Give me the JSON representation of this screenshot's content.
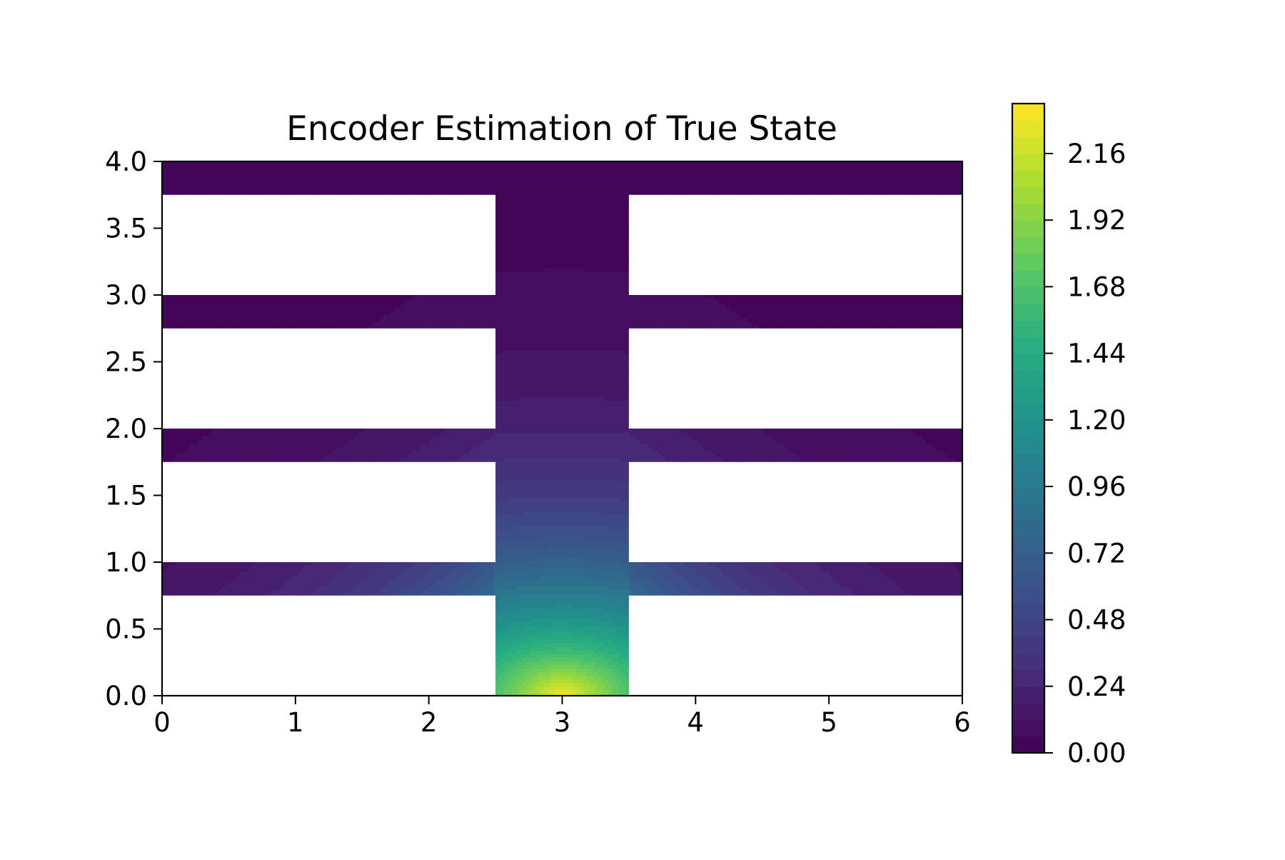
{
  "chart_data": {
    "type": "heatmap",
    "subtype": "filled-contour",
    "title": "Encoder Estimation of True State",
    "xlabel": "",
    "ylabel": "",
    "xlim": [
      0,
      6
    ],
    "ylim": [
      0,
      4
    ],
    "x_ticks": [
      "0",
      "1",
      "2",
      "3",
      "4",
      "5",
      "6"
    ],
    "y_ticks": [
      "0.0",
      "0.5",
      "1.0",
      "1.5",
      "2.0",
      "2.5",
      "3.0",
      "3.5",
      "4.0"
    ],
    "colormap": "viridis",
    "colorbar": {
      "range": [
        0,
        2.34
      ],
      "levels": 39,
      "ticks": [
        "0.00",
        "0.24",
        "0.48",
        "0.72",
        "0.96",
        "1.20",
        "1.44",
        "1.68",
        "1.92",
        "2.16"
      ]
    },
    "domain": {
      "vertical_channel": {
        "x": [
          2.5,
          3.5
        ],
        "y": [
          0,
          4
        ]
      },
      "horizontal_channels": [
        {
          "x": [
            0,
            6
          ],
          "y": [
            0.75,
            1.0
          ]
        },
        {
          "x": [
            0,
            6
          ],
          "y": [
            1.75,
            2.0
          ]
        },
        {
          "x": [
            0,
            6
          ],
          "y": [
            2.75,
            3.0
          ]
        },
        {
          "x": [
            0,
            6
          ],
          "y": [
            3.75,
            4.0
          ]
        }
      ]
    },
    "source": {
      "x": 3.0,
      "y": 0.0,
      "max_value": 2.34
    },
    "grid": false,
    "legend": "none"
  }
}
